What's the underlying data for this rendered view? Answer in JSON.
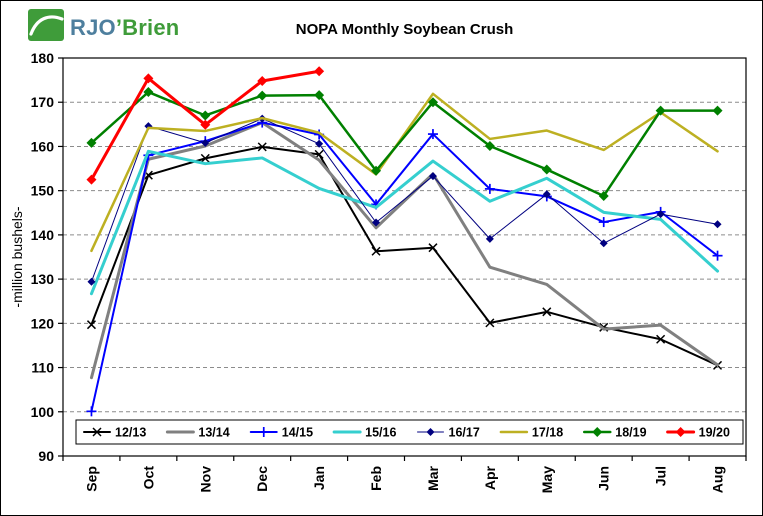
{
  "logo": {
    "brand_prefix": "RJO",
    "brand_suffix": "’Brien",
    "mark_color": "#3f9c3a"
  },
  "chart_data": {
    "type": "line",
    "title": "NOPA Monthly Soybean Crush",
    "xlabel": "",
    "ylabel": "-million bushels-",
    "ylim": [
      90,
      180
    ],
    "y_ticks": [
      90,
      100,
      110,
      120,
      130,
      140,
      150,
      160,
      170,
      180
    ],
    "grid": "horizontal-dashed",
    "legend_position": "bottom-inside",
    "categories": [
      "Sep",
      "Oct",
      "Nov",
      "Dec",
      "Jan",
      "Feb",
      "Mar",
      "Apr",
      "May",
      "Jun",
      "Jul",
      "Aug"
    ],
    "series": [
      {
        "name": "12/13",
        "color": "#000000",
        "marker": "x",
        "marker_size": 4,
        "line_width": 2,
        "values": [
          119.7,
          153.5,
          157.3,
          159.9,
          158.2,
          136.3,
          137.1,
          120.1,
          122.6,
          119.1,
          116.4,
          110.5
        ]
      },
      {
        "name": "13/14",
        "color": "#808080",
        "marker": "none",
        "marker_size": 0,
        "line_width": 3,
        "values": [
          107.7,
          157.1,
          160.1,
          165.4,
          156.9,
          141.6,
          153.8,
          132.7,
          128.8,
          118.7,
          119.6,
          110.6
        ]
      },
      {
        "name": "14/15",
        "color": "#0000ff",
        "marker": "plus",
        "marker_size": 5,
        "line_width": 2,
        "values": [
          100.1,
          158.0,
          161.2,
          165.4,
          162.7,
          146.9,
          162.8,
          150.4,
          148.7,
          142.9,
          145.2,
          135.3
        ]
      },
      {
        "name": "15/16",
        "color": "#35cfcf",
        "marker": "none",
        "marker_size": 0,
        "line_width": 3,
        "values": [
          126.7,
          158.9,
          156.1,
          157.4,
          150.5,
          146.2,
          156.7,
          147.6,
          152.8,
          145.1,
          143.5,
          131.8
        ]
      },
      {
        "name": "16/17",
        "color": "#000080",
        "marker": "diamond",
        "marker_size": 4,
        "line_width": 1,
        "values": [
          129.4,
          164.6,
          160.8,
          166.3,
          160.6,
          142.8,
          153.3,
          139.1,
          149.2,
          138.1,
          144.7,
          142.4
        ]
      },
      {
        "name": "17/18",
        "color": "#bdb022",
        "marker": "none",
        "marker_size": 0,
        "line_width": 2.5,
        "values": [
          136.4,
          164.2,
          163.5,
          166.4,
          163.1,
          153.7,
          171.9,
          161.7,
          163.6,
          159.2,
          167.7,
          158.9
        ]
      },
      {
        "name": "18/19",
        "color": "#008000",
        "marker": "diamond",
        "marker_size": 5,
        "line_width": 2.5,
        "values": [
          160.8,
          172.3,
          167.0,
          171.5,
          171.6,
          154.5,
          170.0,
          160.1,
          154.8,
          148.8,
          168.1,
          168.1
        ]
      },
      {
        "name": "19/20",
        "color": "#ff0000",
        "marker": "diamond",
        "marker_size": 5,
        "line_width": 3,
        "values": [
          152.5,
          175.4,
          164.9,
          174.8,
          177.0,
          null,
          null,
          null,
          null,
          null,
          null,
          null
        ]
      }
    ]
  }
}
